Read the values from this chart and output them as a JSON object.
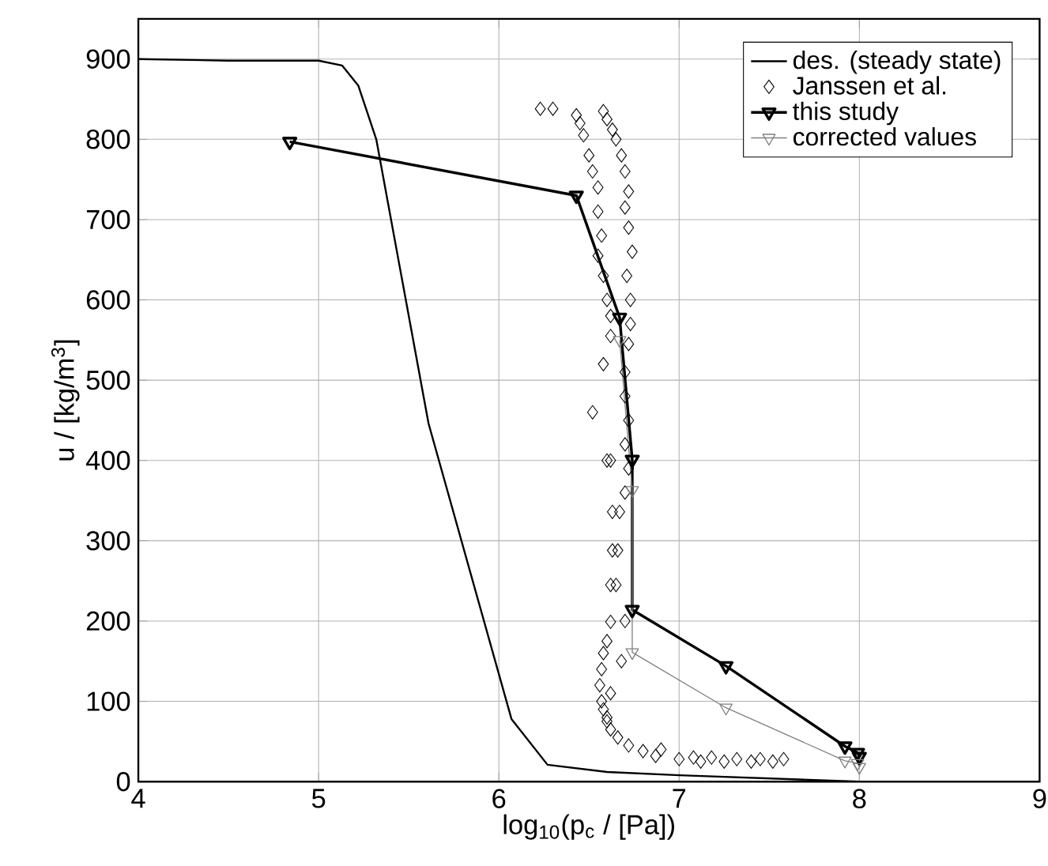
{
  "chart_data": {
    "type": "line",
    "xlabel": "log$_{10}$(p$_{c}$ / [Pa])",
    "ylabel": "u / [kg/m$^{3}$]",
    "xlim": [
      4,
      9
    ],
    "ylim": [
      0,
      950
    ],
    "xticks": [
      4,
      5,
      6,
      7,
      8,
      9
    ],
    "yticks": [
      0,
      100,
      200,
      300,
      400,
      500,
      600,
      700,
      800,
      900
    ],
    "grid": true,
    "legend": "top right",
    "series": [
      {
        "name": "des. (steady state)",
        "marker": "none",
        "color": "#000000",
        "x": [
          4,
          4.5,
          5,
          5.13,
          5.22,
          5.32,
          5.61,
          6.07,
          6.27,
          6.6,
          7,
          8
        ],
        "values": [
          900,
          898,
          898,
          892,
          867,
          800,
          446,
          78,
          21,
          12,
          8,
          0
        ]
      },
      {
        "name": "Janssen et al.",
        "type": "scatter",
        "marker": "diamond",
        "color": "#000000",
        "x": [
          6.23,
          6.3,
          6.43,
          6.45,
          6.47,
          6.58,
          6.6,
          6.63,
          6.65,
          6.68,
          6.7,
          6.72,
          6.7,
          6.72,
          6.74,
          6.71,
          6.73,
          6.73,
          6.72,
          6.7,
          6.7,
          6.72,
          6.7,
          6.72,
          6.7,
          6.5,
          6.52,
          6.55,
          6.55,
          6.57,
          6.55,
          6.58,
          6.6,
          6.62,
          6.62,
          6.58,
          6.52,
          6.6,
          6.62,
          6.63,
          6.67,
          6.63,
          6.66,
          6.62,
          6.65,
          6.62,
          6.6,
          6.58,
          6.57,
          6.56,
          6.57,
          6.58,
          6.6,
          6.62,
          6.66,
          6.72,
          6.8,
          6.87,
          6.9,
          7.0,
          7.08,
          7.12,
          7.18,
          7.25,
          7.32,
          7.4,
          7.45,
          7.52,
          7.58,
          6.7,
          6.68,
          6.62,
          6.6
        ],
        "values": [
          838,
          838,
          830,
          820,
          805,
          835,
          825,
          812,
          800,
          780,
          760,
          735,
          715,
          690,
          660,
          630,
          600,
          570,
          545,
          510,
          480,
          450,
          420,
          390,
          360,
          780,
          760,
          740,
          710,
          680,
          655,
          630,
          600,
          580,
          555,
          520,
          460,
          400,
          400,
          336,
          336,
          288,
          288,
          245,
          245,
          199,
          175,
          160,
          140,
          120,
          100,
          90,
          75,
          65,
          55,
          45,
          38,
          32,
          40,
          28,
          30,
          25,
          30,
          25,
          28,
          25,
          28,
          25,
          28,
          200,
          150,
          110,
          80
        ]
      },
      {
        "name": "this study",
        "marker": "triangle",
        "color": "#000000",
        "x": [
          4.84,
          6.43,
          6.67,
          6.74,
          6.74,
          7.26,
          7.92,
          7.99,
          8.0
        ],
        "values": [
          797,
          730,
          578,
          401,
          214,
          144,
          44,
          36,
          31
        ]
      },
      {
        "name": "corrected values",
        "marker": "triangle",
        "color": "#808080",
        "x": [
          6.67,
          6.74,
          6.74,
          7.26,
          7.92,
          7.99,
          8.0
        ],
        "values": [
          550,
          363,
          161,
          92,
          26,
          23,
          18
        ]
      }
    ]
  }
}
